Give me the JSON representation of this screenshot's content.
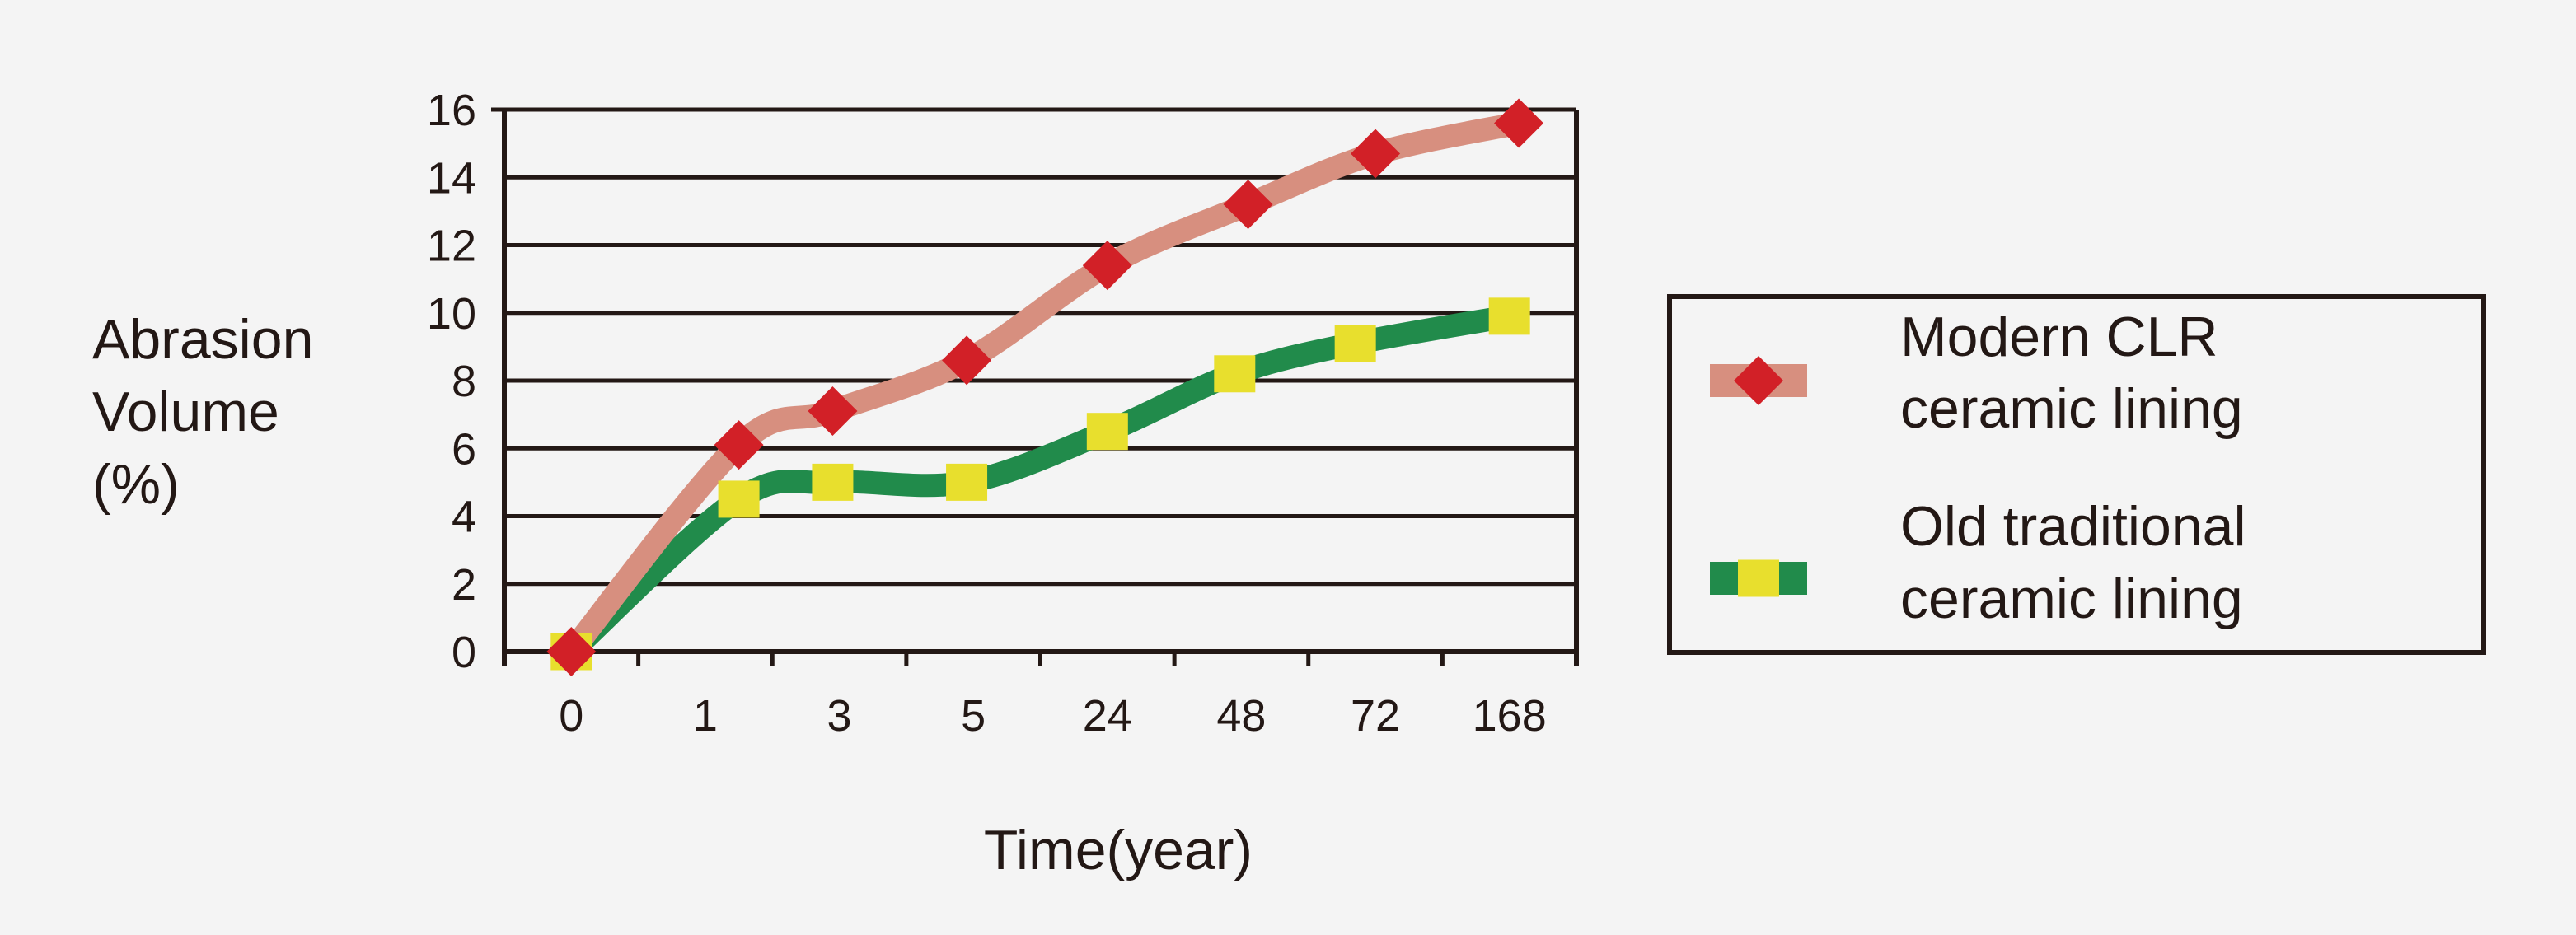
{
  "chart_data": {
    "type": "line",
    "title": "",
    "ylabel_lines": [
      "Abrasion",
      "Volume",
      "(%)"
    ],
    "xlabel": "Time(year)",
    "categories": [
      "0",
      "1",
      "3",
      "5",
      "24",
      "48",
      "72",
      "168"
    ],
    "y_ticks": [
      "0",
      "2",
      "4",
      "6",
      "8",
      "10",
      "12",
      "14",
      "16"
    ],
    "ylim": [
      0,
      16
    ],
    "grid": true,
    "legend_position": "right",
    "series": [
      {
        "name_lines": [
          "Modern CLR",
          "ceramic lining"
        ],
        "line_color": "#d78f7f",
        "marker_color": "#d22027",
        "marker": "diamond",
        "points": [
          [
            0,
            0
          ],
          [
            1.25,
            6.1
          ],
          [
            1.95,
            7.1
          ],
          [
            2.95,
            8.6
          ],
          [
            4.0,
            11.4
          ],
          [
            5.05,
            13.2
          ],
          [
            6.0,
            14.7
          ],
          [
            7.07,
            15.6
          ]
        ]
      },
      {
        "name_lines": [
          "Old traditional",
          "ceramic lining"
        ],
        "line_color": "#218b4b",
        "marker_color": "#e8df2d",
        "marker": "square",
        "points": [
          [
            0,
            0
          ],
          [
            1.25,
            4.5
          ],
          [
            1.95,
            5.0
          ],
          [
            2.95,
            5.0
          ],
          [
            4.0,
            6.5
          ],
          [
            4.95,
            8.2
          ],
          [
            5.85,
            9.1
          ],
          [
            7.0,
            9.9
          ]
        ]
      }
    ]
  }
}
